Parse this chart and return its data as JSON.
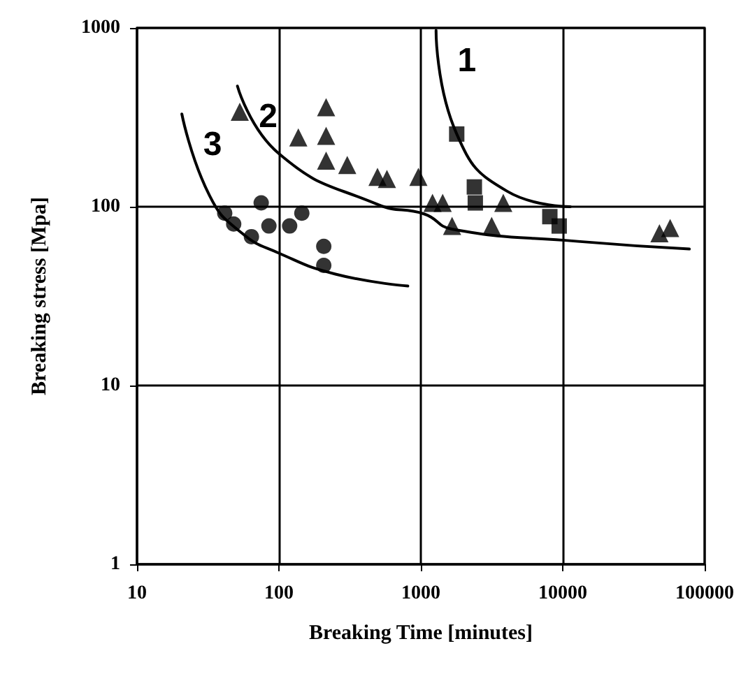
{
  "chart_data": {
    "type": "scatter",
    "xlabel": "Breaking Time [minutes]",
    "ylabel": "Breaking stress [Mpa]",
    "log": "xy",
    "grid": true,
    "xlim": [
      10,
      100000
    ],
    "ylim": [
      1,
      1000
    ],
    "xticks": [
      10,
      100,
      1000,
      10000,
      100000
    ],
    "yticks": [
      1,
      10,
      100,
      1000
    ],
    "series": [
      {
        "marker": "circle",
        "color": "#000000",
        "x": [
          41.5,
          48,
          64,
          75,
          85,
          119,
          145,
          207,
          207
        ],
        "values": [
          92,
          80,
          68,
          105,
          78,
          78,
          92,
          60,
          47
        ]
      },
      {
        "marker": "triangle",
        "color": "#000000",
        "x": [
          53,
          137,
          215,
          215,
          215,
          303,
          495,
          577,
          961,
          1208,
          1425,
          1660,
          3810,
          3155,
          48000,
          57100
        ],
        "values": [
          340,
          244,
          360,
          249,
          181,
          171,
          147,
          143,
          147,
          105,
          105,
          78,
          105,
          78,
          71,
          76
        ]
      },
      {
        "marker": "square",
        "color": "#000000",
        "x": [
          1790,
          2383,
          2420,
          8110,
          9440
        ],
        "values": [
          255,
          129,
          105,
          88,
          78
        ]
      },
      {
        "type": "line",
        "marker": "none",
        "color": "#000000",
        "x": [
          1280,
          1790,
          4060,
          11300
        ],
        "values": [
          970,
          255,
          122,
          100
        ]
      },
      {
        "type": "line",
        "marker": "none",
        "color": "#000000",
        "x": [
          51,
          100,
          495,
          1060,
          1650,
          12800,
          78000
        ],
        "values": [
          473,
          198,
          103,
          91,
          75,
          64,
          58
        ]
      },
      {
        "type": "line",
        "marker": "none",
        "color": "#000000",
        "x": [
          20.7,
          32.5,
          55,
          100,
          250,
          810
        ],
        "values": [
          330,
          115,
          71,
          55,
          42,
          36
        ]
      }
    ],
    "annotations": [
      "1",
      "2",
      "3"
    ]
  }
}
